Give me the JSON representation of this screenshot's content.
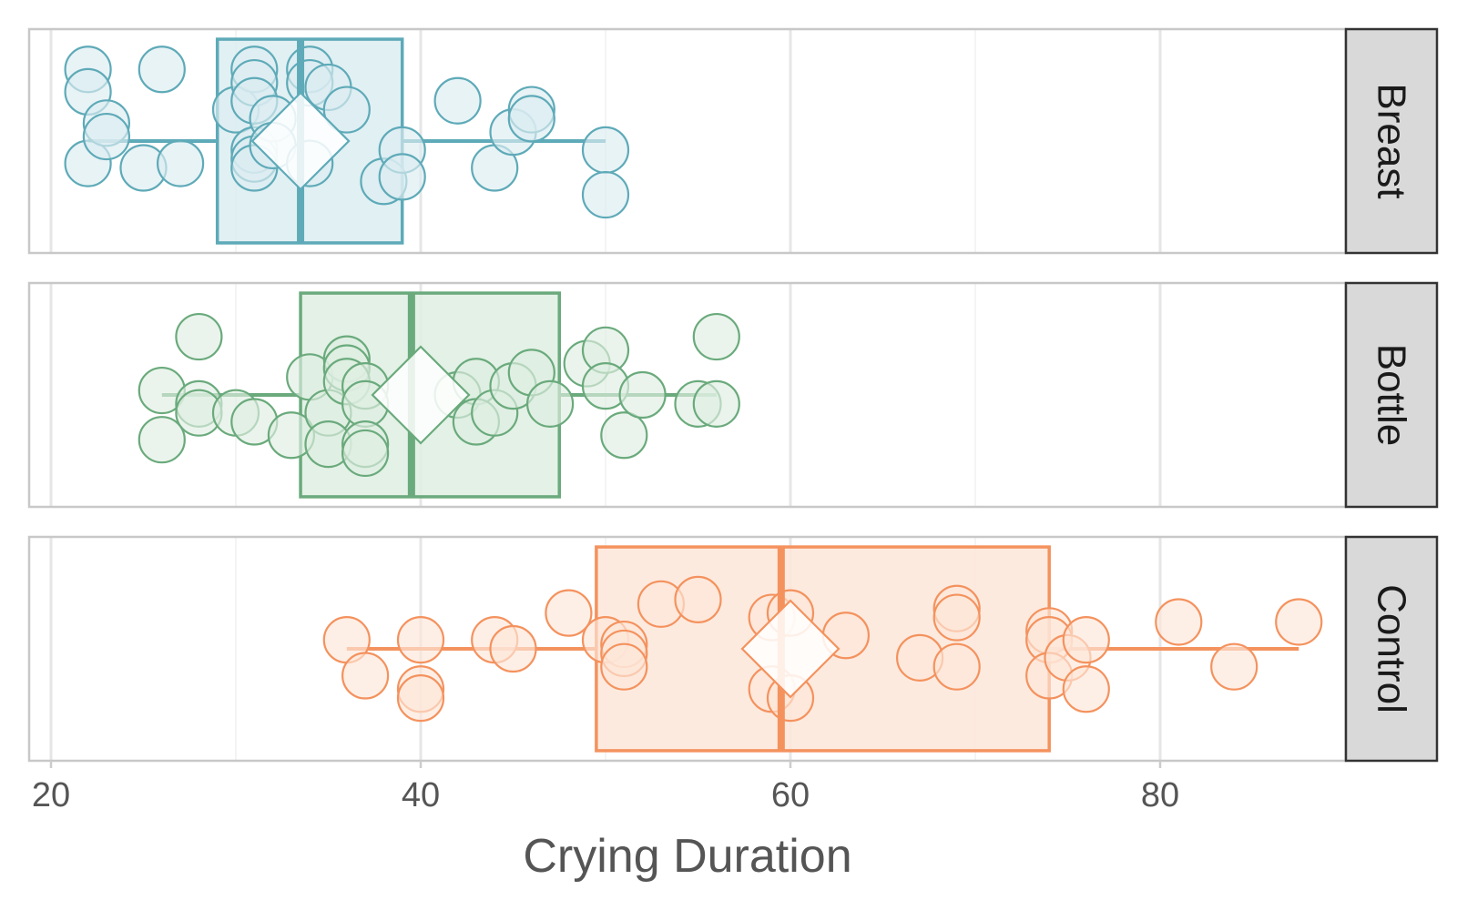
{
  "chart_data": {
    "type": "box-jitter",
    "title": "",
    "xlabel": "Crying Duration",
    "xlim": [
      18,
      95
    ],
    "xticks": [
      20,
      40,
      60,
      80
    ],
    "grid": true,
    "orientation": "horizontal",
    "facets": [
      {
        "name": "Breast",
        "color": "#5eaab8",
        "fill": "#dcedf1",
        "box": {
          "q1": 29,
          "median": 33.5,
          "q3": 39,
          "whisker_low": 22,
          "whisker_high": 50,
          "mean": 33.5
        },
        "points": [
          {
            "x": 22,
            "j": 0.8
          },
          {
            "x": 22,
            "j": 0.55
          },
          {
            "x": 22,
            "j": -0.25
          },
          {
            "x": 23,
            "j": 0.2
          },
          {
            "x": 23,
            "j": 0.05
          },
          {
            "x": 25,
            "j": -0.3
          },
          {
            "x": 26,
            "j": 0.8
          },
          {
            "x": 27,
            "j": -0.25
          },
          {
            "x": 30,
            "j": 0.35
          },
          {
            "x": 31,
            "j": 0.8
          },
          {
            "x": 31,
            "j": 0.65
          },
          {
            "x": 31,
            "j": 0.45
          },
          {
            "x": 31,
            "j": -0.1
          },
          {
            "x": 31,
            "j": -0.2
          },
          {
            "x": 31,
            "j": -0.3
          },
          {
            "x": 32,
            "j": 0.25
          },
          {
            "x": 32,
            "j": -0.05
          },
          {
            "x": 34,
            "j": 0.8
          },
          {
            "x": 34,
            "j": 0.65
          },
          {
            "x": 34,
            "j": -0.25
          },
          {
            "x": 35,
            "j": 0.6
          },
          {
            "x": 36,
            "j": 0.35
          },
          {
            "x": 38,
            "j": -0.45
          },
          {
            "x": 39,
            "j": -0.1
          },
          {
            "x": 39,
            "j": -0.4
          },
          {
            "x": 42,
            "j": 0.45
          },
          {
            "x": 44,
            "j": -0.3
          },
          {
            "x": 45,
            "j": 0.1
          },
          {
            "x": 46,
            "j": 0.35
          },
          {
            "x": 46,
            "j": 0.25
          },
          {
            "x": 50,
            "j": -0.1
          },
          {
            "x": 50,
            "j": -0.6
          }
        ]
      },
      {
        "name": "Bottle",
        "color": "#6aaa7c",
        "fill": "#deeee2",
        "box": {
          "q1": 33.5,
          "median": 39.5,
          "q3": 47.5,
          "whisker_low": 26,
          "whisker_high": 56,
          "mean": 40
        },
        "points": [
          {
            "x": 26,
            "j": 0.05
          },
          {
            "x": 26,
            "j": -0.5
          },
          {
            "x": 28,
            "j": 0.65
          },
          {
            "x": 28,
            "j": -0.1
          },
          {
            "x": 28,
            "j": -0.2
          },
          {
            "x": 30,
            "j": -0.2
          },
          {
            "x": 31,
            "j": -0.3
          },
          {
            "x": 33,
            "j": -0.45
          },
          {
            "x": 34,
            "j": 0.2
          },
          {
            "x": 35,
            "j": -0.2
          },
          {
            "x": 35,
            "j": -0.55
          },
          {
            "x": 36,
            "j": 0.4
          },
          {
            "x": 36,
            "j": 0.3
          },
          {
            "x": 36,
            "j": 0.15
          },
          {
            "x": 37,
            "j": 0.1
          },
          {
            "x": 37,
            "j": -0.1
          },
          {
            "x": 37,
            "j": -0.55
          },
          {
            "x": 37,
            "j": -0.65
          },
          {
            "x": 42,
            "j": 0.0
          },
          {
            "x": 43,
            "j": 0.15
          },
          {
            "x": 43,
            "j": -0.3
          },
          {
            "x": 44,
            "j": -0.2
          },
          {
            "x": 45,
            "j": 0.1
          },
          {
            "x": 46,
            "j": 0.25
          },
          {
            "x": 47,
            "j": -0.1
          },
          {
            "x": 49,
            "j": 0.35
          },
          {
            "x": 50,
            "j": 0.5
          },
          {
            "x": 50,
            "j": 0.1
          },
          {
            "x": 51,
            "j": -0.45
          },
          {
            "x": 52,
            "j": 0.0
          },
          {
            "x": 55,
            "j": -0.1
          },
          {
            "x": 56,
            "j": 0.65
          },
          {
            "x": 56,
            "j": -0.1
          }
        ]
      },
      {
        "name": "Control",
        "color": "#f4925e",
        "fill": "#fde6d9",
        "box": {
          "q1": 49.5,
          "median": 59.5,
          "q3": 74,
          "whisker_low": 36,
          "whisker_high": 87.5,
          "mean": 60
        },
        "points": [
          {
            "x": 36,
            "j": 0.1
          },
          {
            "x": 37,
            "j": -0.3
          },
          {
            "x": 40,
            "j": 0.1
          },
          {
            "x": 40,
            "j": -0.45
          },
          {
            "x": 40,
            "j": -0.55
          },
          {
            "x": 44,
            "j": 0.1
          },
          {
            "x": 45,
            "j": 0.0
          },
          {
            "x": 48,
            "j": 0.4
          },
          {
            "x": 50,
            "j": 0.1
          },
          {
            "x": 51,
            "j": 0.05
          },
          {
            "x": 51,
            "j": -0.05
          },
          {
            "x": 51,
            "j": -0.2
          },
          {
            "x": 53,
            "j": 0.5
          },
          {
            "x": 55,
            "j": 0.55
          },
          {
            "x": 59,
            "j": 0.35
          },
          {
            "x": 59,
            "j": -0.45
          },
          {
            "x": 60,
            "j": 0.4
          },
          {
            "x": 60,
            "j": -0.55
          },
          {
            "x": 63,
            "j": 0.15
          },
          {
            "x": 67,
            "j": -0.1
          },
          {
            "x": 69,
            "j": 0.45
          },
          {
            "x": 69,
            "j": 0.35
          },
          {
            "x": 69,
            "j": -0.2
          },
          {
            "x": 74,
            "j": 0.2
          },
          {
            "x": 74,
            "j": 0.1
          },
          {
            "x": 74,
            "j": -0.3
          },
          {
            "x": 75,
            "j": -0.1
          },
          {
            "x": 76,
            "j": 0.1
          },
          {
            "x": 76,
            "j": -0.45
          },
          {
            "x": 81,
            "j": 0.3
          },
          {
            "x": 84,
            "j": -0.2
          },
          {
            "x": 87.5,
            "j": 0.3
          }
        ]
      }
    ]
  }
}
